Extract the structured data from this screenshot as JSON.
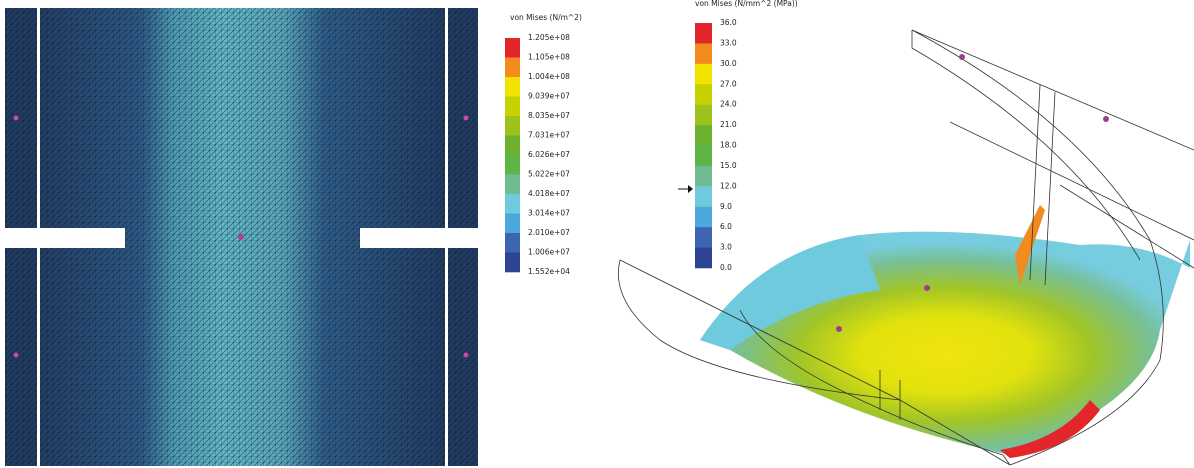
{
  "legends": [
    {
      "title": "von Mises (N/m^2)",
      "labels": [
        "1.205e+08",
        "1.105e+08",
        "1.004e+08",
        "9.039e+07",
        "8.035e+07",
        "7.031e+07",
        "6.026e+07",
        "5.022e+07",
        "4.018e+07",
        "3.014e+07",
        "2.010e+07",
        "1.006e+07",
        "1.552e+04"
      ],
      "colors": [
        "#e2262a",
        "#f28a1e",
        "#f2e200",
        "#c6d200",
        "#9cc21c",
        "#6cb22e",
        "#5eb446",
        "#70bc90",
        "#70cade",
        "#4aa8dc",
        "#3c66b2",
        "#2c4492"
      ]
    },
    {
      "title": "von Mises (N/mm^2 (MPa))",
      "labels": [
        "36.0",
        "33.0",
        "30.0",
        "27.0",
        "24.0",
        "21.0",
        "18.0",
        "15.0",
        "12.0",
        "9.0",
        "6.0",
        "3.0",
        "0.0"
      ],
      "colors": [
        "#e2262a",
        "#f28a1e",
        "#f2e200",
        "#c6d200",
        "#9cc21c",
        "#6cb22e",
        "#5eb446",
        "#70bc90",
        "#70cade",
        "#4aa8dc",
        "#3c66b2",
        "#2c4492"
      ]
    }
  ]
}
